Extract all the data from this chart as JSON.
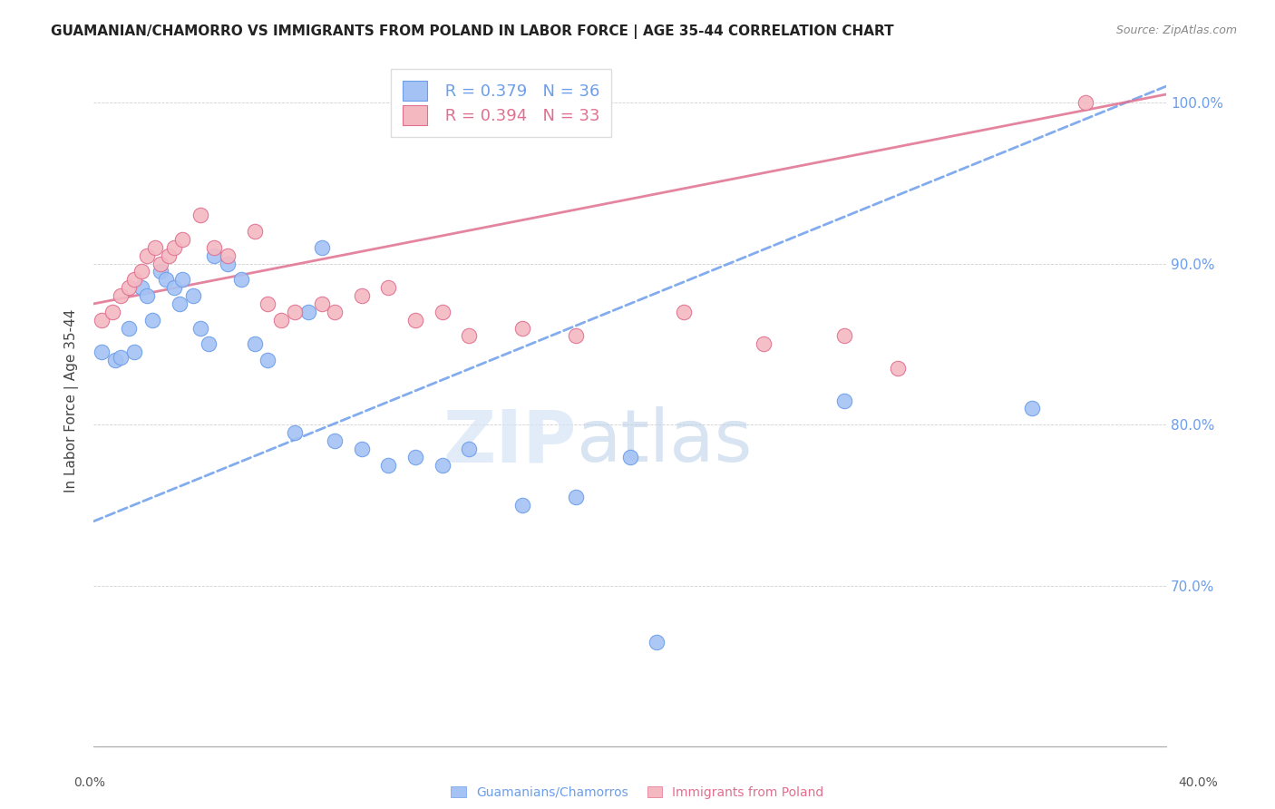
{
  "title": "GUAMANIAN/CHAMORRO VS IMMIGRANTS FROM POLAND IN LABOR FORCE | AGE 35-44 CORRELATION CHART",
  "source": "Source: ZipAtlas.com",
  "ylabel": "In Labor Force | Age 35-44",
  "legend_blue_r": "R = 0.379",
  "legend_blue_n": "N = 36",
  "legend_pink_r": "R = 0.394",
  "legend_pink_n": "N = 33",
  "blue_color": "#a4c2f4",
  "pink_color": "#f4b8c1",
  "blue_edge_color": "#6d9eeb",
  "pink_edge_color": "#e07090",
  "blue_line_color": "#6d9eeb",
  "pink_line_color": "#e07090",
  "legend_text_color_blue": "#6d9eeb",
  "legend_text_color_pink": "#e07090",
  "watermark_color": "#d6e4f7",
  "blue_points": [
    [
      0.3,
      84.5
    ],
    [
      0.8,
      84.0
    ],
    [
      1.0,
      84.2
    ],
    [
      1.3,
      86.0
    ],
    [
      1.5,
      84.5
    ],
    [
      1.8,
      88.5
    ],
    [
      2.0,
      88.0
    ],
    [
      2.2,
      86.5
    ],
    [
      2.5,
      89.5
    ],
    [
      2.7,
      89.0
    ],
    [
      3.0,
      88.5
    ],
    [
      3.2,
      87.5
    ],
    [
      3.3,
      89.0
    ],
    [
      3.7,
      88.0
    ],
    [
      4.0,
      86.0
    ],
    [
      4.3,
      85.0
    ],
    [
      4.5,
      90.5
    ],
    [
      5.0,
      90.0
    ],
    [
      5.5,
      89.0
    ],
    [
      6.0,
      85.0
    ],
    [
      6.5,
      84.0
    ],
    [
      7.5,
      79.5
    ],
    [
      8.0,
      87.0
    ],
    [
      8.5,
      91.0
    ],
    [
      9.0,
      79.0
    ],
    [
      10.0,
      78.5
    ],
    [
      11.0,
      77.5
    ],
    [
      12.0,
      78.0
    ],
    [
      13.0,
      77.5
    ],
    [
      14.0,
      78.5
    ],
    [
      16.0,
      75.0
    ],
    [
      18.0,
      75.5
    ],
    [
      20.0,
      78.0
    ],
    [
      21.0,
      66.5
    ],
    [
      28.0,
      81.5
    ],
    [
      35.0,
      81.0
    ]
  ],
  "pink_points": [
    [
      0.3,
      86.5
    ],
    [
      0.7,
      87.0
    ],
    [
      1.0,
      88.0
    ],
    [
      1.3,
      88.5
    ],
    [
      1.5,
      89.0
    ],
    [
      1.8,
      89.5
    ],
    [
      2.0,
      90.5
    ],
    [
      2.3,
      91.0
    ],
    [
      2.5,
      90.0
    ],
    [
      2.8,
      90.5
    ],
    [
      3.0,
      91.0
    ],
    [
      3.3,
      91.5
    ],
    [
      4.0,
      93.0
    ],
    [
      4.5,
      91.0
    ],
    [
      5.0,
      90.5
    ],
    [
      6.0,
      92.0
    ],
    [
      6.5,
      87.5
    ],
    [
      7.0,
      86.5
    ],
    [
      7.5,
      87.0
    ],
    [
      8.5,
      87.5
    ],
    [
      9.0,
      87.0
    ],
    [
      10.0,
      88.0
    ],
    [
      11.0,
      88.5
    ],
    [
      12.0,
      86.5
    ],
    [
      13.0,
      87.0
    ],
    [
      14.0,
      85.5
    ],
    [
      16.0,
      86.0
    ],
    [
      18.0,
      85.5
    ],
    [
      22.0,
      87.0
    ],
    [
      25.0,
      85.0
    ],
    [
      28.0,
      85.5
    ],
    [
      30.0,
      83.5
    ],
    [
      37.0,
      100.0
    ]
  ],
  "xlim": [
    0,
    40
  ],
  "ylim": [
    60,
    103
  ],
  "y_tick_vals": [
    70,
    80,
    90,
    100
  ],
  "blue_trend_x": [
    0,
    40
  ],
  "blue_trend_y": [
    74.0,
    101.0
  ],
  "pink_trend_x": [
    0,
    40
  ],
  "pink_trend_y": [
    87.5,
    100.5
  ],
  "grid_color": "#cccccc",
  "spine_color": "#aaaaaa"
}
